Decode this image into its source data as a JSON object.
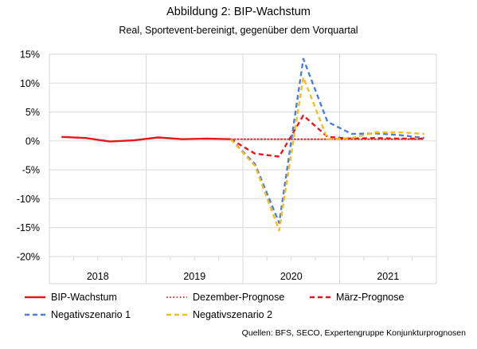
{
  "title": "Abbildung 2: BIP-Wachstum",
  "subtitle": "Real, Sportevent-bereinigt, gegenüber dem Vorquartal",
  "source": "Quellen: BFS, SECO, Expertengruppe Konjunkturprognosen",
  "chart_data": {
    "type": "line",
    "title": "Abbildung 2: BIP-Wachstum",
    "subtitle": "Real, Sportevent-bereinigt, gegenüber dem Vorquartal",
    "ylim": [
      -20,
      15
    ],
    "yticks": [
      15,
      10,
      5,
      0,
      -5,
      -10,
      -15,
      -20
    ],
    "ytick_labels": [
      "15%",
      "10%",
      "5%",
      "0%",
      "-5%",
      "-10%",
      "-15%",
      "-20%"
    ],
    "x_quarters": [
      "2018Q1",
      "2018Q2",
      "2018Q3",
      "2018Q4",
      "2019Q1",
      "2019Q2",
      "2019Q3",
      "2019Q4",
      "2020Q1",
      "2020Q2",
      "2020Q3",
      "2020Q4",
      "2021Q1",
      "2021Q2",
      "2021Q3",
      "2021Q4"
    ],
    "year_labels": [
      "2018",
      "2019",
      "2020",
      "2021"
    ],
    "grid": true,
    "legend_position": "bottom",
    "series": [
      {
        "name": "BIP-Wachstum",
        "color": "#e8161b",
        "dash": "solid",
        "values": [
          0.7,
          0.5,
          -0.1,
          0.1,
          0.6,
          0.3,
          0.4,
          0.3,
          null,
          null,
          null,
          null,
          null,
          null,
          null,
          null
        ]
      },
      {
        "name": "Dezember-Prognose",
        "color": "#e8161b",
        "dash": "dotted",
        "values": [
          null,
          null,
          null,
          null,
          null,
          null,
          null,
          0.3,
          0.3,
          0.3,
          0.3,
          0.3,
          0.3,
          0.3,
          0.3,
          0.3
        ]
      },
      {
        "name": "März-Prognose",
        "color": "#e8161b",
        "dash": "dashed",
        "values": [
          null,
          null,
          null,
          null,
          null,
          null,
          null,
          0.3,
          -2.2,
          -2.7,
          4.4,
          0.7,
          0.4,
          0.5,
          0.4,
          0.4
        ]
      },
      {
        "name": "Negativszenario 1",
        "color": "#4a7fe0",
        "dash": "dashed",
        "values": [
          null,
          null,
          null,
          null,
          null,
          null,
          null,
          0.3,
          -4.0,
          -14.2,
          14.2,
          3.3,
          1.2,
          1.3,
          1.0,
          0.5
        ]
      },
      {
        "name": "Negativszenario 2",
        "color": "#f5be1e",
        "dash": "dashed",
        "values": [
          null,
          null,
          null,
          null,
          null,
          null,
          null,
          0.3,
          -4.3,
          -15.5,
          11.0,
          0.3,
          0.5,
          1.5,
          1.5,
          1.2
        ]
      }
    ]
  }
}
